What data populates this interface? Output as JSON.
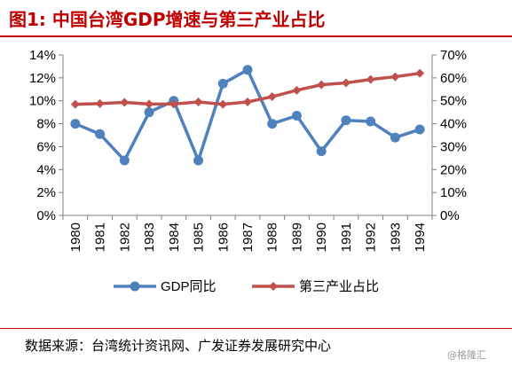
{
  "title": "图1:  中国台湾GDP增速与第三产业占比",
  "source": "数据来源：台湾统计资讯网、广发证券发展研究中心",
  "watermark": "@格隆汇",
  "colors": {
    "title": "#c00000",
    "gdp_series": "#4f81bd",
    "tertiary_series": "#c0504d",
    "axis": "#7f7f7f"
  },
  "chart_data": {
    "type": "line",
    "title": "",
    "x": [
      "1980",
      "1981",
      "1982",
      "1983",
      "1984",
      "1985",
      "1986",
      "1987",
      "1988",
      "1989",
      "1990",
      "1991",
      "1992",
      "1993",
      "1994"
    ],
    "series": [
      {
        "name": "GDP同比",
        "axis": "left",
        "marker": "circle",
        "values": [
          8.0,
          7.1,
          4.8,
          9.0,
          10.0,
          4.8,
          11.5,
          12.7,
          8.0,
          8.7,
          5.6,
          8.3,
          8.2,
          6.8,
          7.5
        ]
      },
      {
        "name": "第三产业占比",
        "axis": "right",
        "marker": "diamond",
        "values": [
          48.5,
          48.8,
          49.3,
          48.6,
          48.6,
          49.5,
          48.5,
          49.5,
          51.8,
          54.6,
          57.0,
          57.8,
          59.3,
          60.5,
          62.0
        ]
      }
    ],
    "left_axis": {
      "ylim": [
        0,
        14
      ],
      "ticks": [
        "0%",
        "2%",
        "4%",
        "6%",
        "8%",
        "10%",
        "12%",
        "14%"
      ]
    },
    "right_axis": {
      "ylim": [
        0,
        70
      ],
      "ticks": [
        "0%",
        "10%",
        "20%",
        "30%",
        "40%",
        "50%",
        "60%",
        "70%"
      ]
    },
    "grid": false,
    "legend_position": "bottom"
  }
}
